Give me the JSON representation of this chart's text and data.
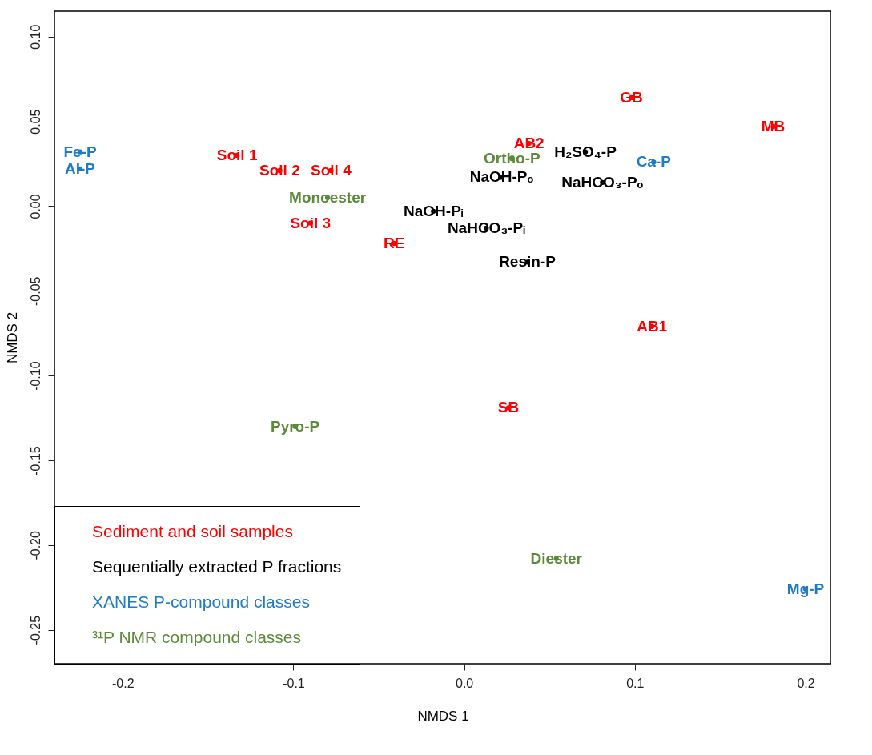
{
  "chart_data": {
    "type": "scatter",
    "xlabel": "NMDS 1",
    "ylabel": "NMDS 2",
    "marker": "none",
    "grid": false,
    "legend": "bottom left",
    "xlim": [
      -0.24,
      0.215
    ],
    "ylim": [
      -0.27,
      0.115
    ],
    "xticks": [
      {
        "value": -0.2,
        "label": "-0.2"
      },
      {
        "value": -0.1,
        "label": "-0.1"
      },
      {
        "value": 0,
        "label": "0.0"
      },
      {
        "value": 0.1,
        "label": "0.1"
      },
      {
        "value": 0.2,
        "label": "0.2"
      }
    ],
    "yticks": [
      {
        "value": -0.25,
        "label": "-0.25"
      },
      {
        "value": -0.2,
        "label": "-0.20"
      },
      {
        "value": -0.15,
        "label": "-0.15"
      },
      {
        "value": -0.1,
        "label": "-0.10"
      },
      {
        "value": -0.05,
        "label": "-0.05"
      },
      {
        "value": 0,
        "label": "0.00"
      },
      {
        "value": 0.05,
        "label": "0.05"
      },
      {
        "value": 0.1,
        "label": "0.10"
      }
    ],
    "series": [
      {
        "name": "Sediment and soil samples",
        "color": "#ff0000",
        "x": [
          0.098,
          0.181,
          0.038,
          -0.133,
          -0.108,
          -0.078,
          -0.09,
          -0.041,
          0.11,
          0.026
        ],
        "values": [
          0.064,
          0.047,
          0.037,
          0.03,
          0.021,
          0.021,
          -0.01,
          -0.022,
          -0.071,
          -0.119
        ],
        "value_labels": [
          "GB",
          "MB",
          "AB2",
          "Soil 1",
          "Soil 2",
          "Soil 4",
          "Soil 3",
          "RE",
          "AB1",
          "SB"
        ]
      },
      {
        "name": "Sequentially extracted P fractions",
        "color": "#000000",
        "x": [
          0.071,
          0.022,
          0.081,
          -0.018,
          0.013,
          0.037
        ],
        "values": [
          0.032,
          0.017,
          0.014,
          -0.003,
          -0.013,
          -0.033
        ],
        "value_labels": [
          "H₂SO₄-P",
          "NaOH-Pₒ",
          "NaHCO₃-Pₒ",
          "NaOH-Pᵢ",
          "NaHCO₃-Pᵢ",
          "Resin-P"
        ]
      },
      {
        "name": "XANES P-compound classes",
        "color": "#1f7ac8",
        "x": [
          -0.225,
          -0.225,
          0.111,
          0.2
        ],
        "values": [
          0.032,
          0.022,
          0.026,
          -0.226
        ],
        "value_labels": [
          "Fe-P",
          "Al-P",
          "Ca-P",
          "Mg-P"
        ]
      },
      {
        "name": "³¹P NMR compound classes",
        "color": "#5a8a3a",
        "x": [
          0.028,
          -0.08,
          -0.099,
          0.054
        ],
        "values": [
          0.028,
          0.005,
          -0.13,
          -0.208
        ],
        "value_labels": [
          "Ortho-P",
          "Monoester",
          "Pyro-P",
          "Diester"
        ]
      }
    ]
  }
}
